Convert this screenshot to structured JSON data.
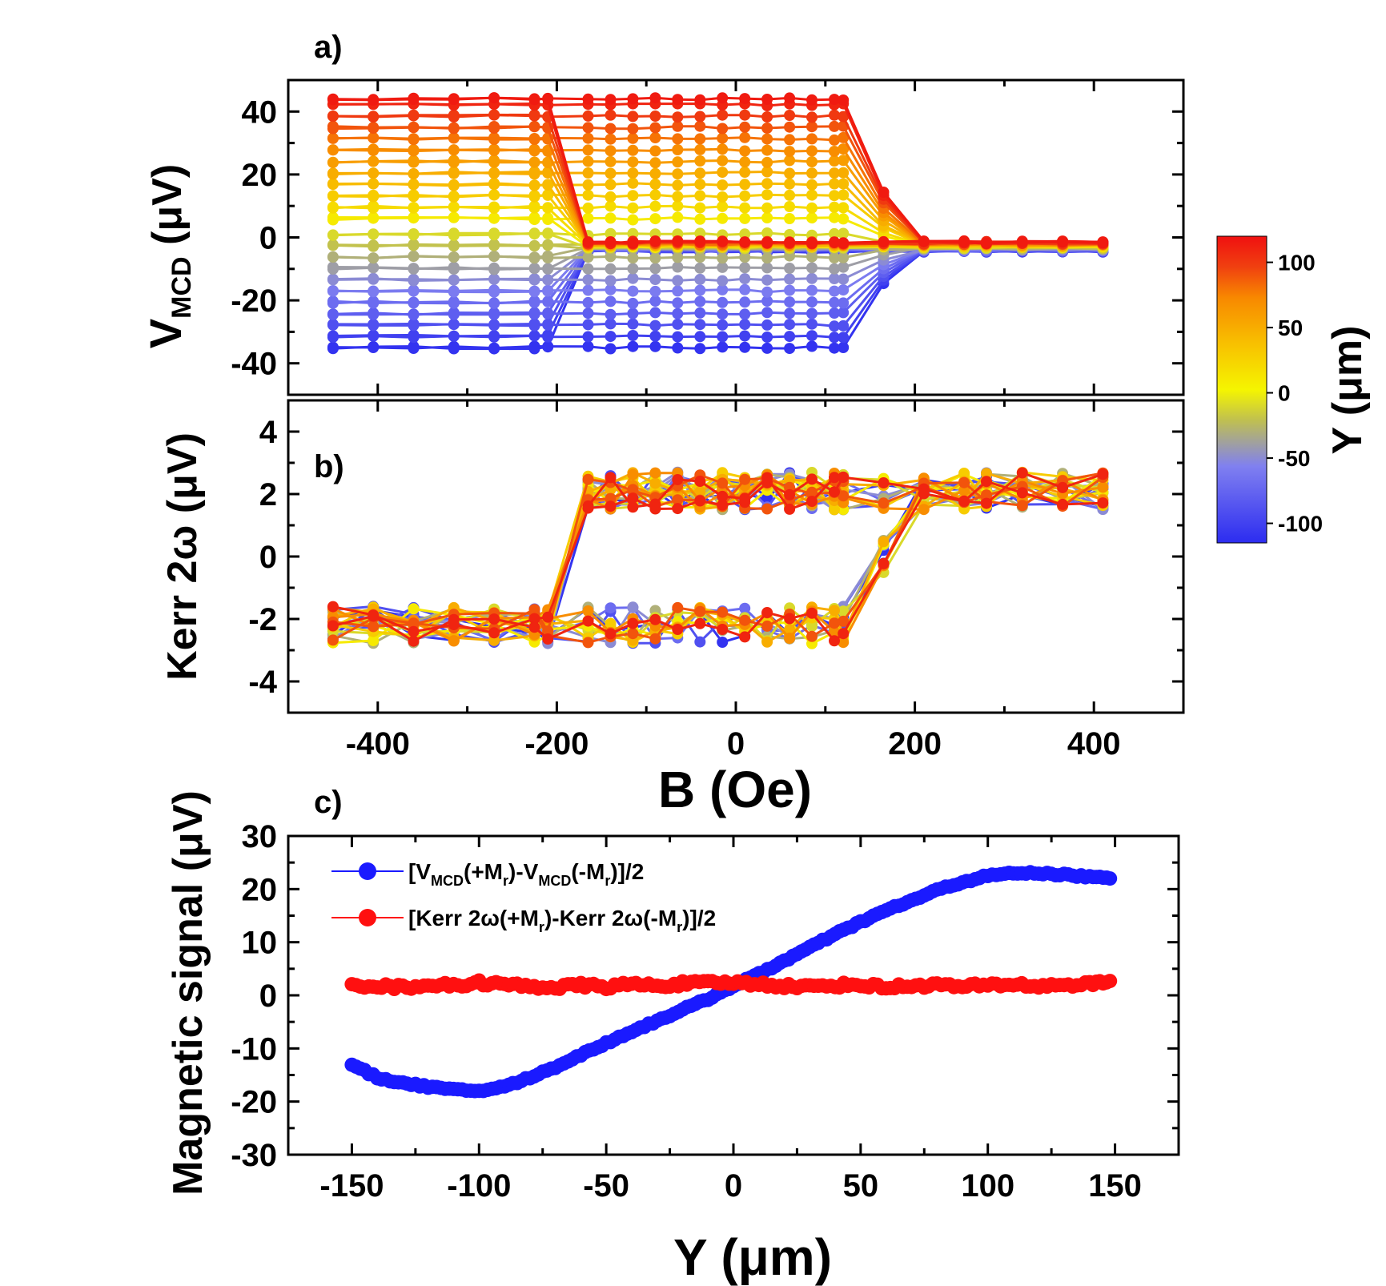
{
  "colors": {
    "colormap": [
      "#2c2cf0",
      "#8080f0",
      "#c0c050",
      "#f5f500",
      "#f8c000",
      "#f88800",
      "#f04010",
      "#f01010"
    ],
    "vmcd_series": "#1a1aff",
    "kerr_series": "#ff1010"
  },
  "chart_data": [
    {
      "id": "a",
      "type": "line",
      "panel_label": "a)",
      "ylabel": "V_MCD (μV)",
      "ylabel_main": "V",
      "ylabel_sub": "MCD",
      "ylabel_rest": " (μV)",
      "xlim": [
        -500,
        500
      ],
      "ylim": [
        -50,
        50
      ],
      "yticks": [
        -40,
        -20,
        0,
        20,
        40
      ],
      "ytick_labels": [
        "-40",
        "-20",
        "0",
        "20",
        "40"
      ],
      "B": [
        -450,
        -405,
        -360,
        -315,
        -270,
        -225,
        -210,
        -165,
        -140,
        -115,
        -90,
        -65,
        -40,
        -15,
        10,
        35,
        60,
        85,
        110,
        120,
        165,
        210,
        255,
        280,
        320,
        365,
        410
      ],
      "Y_levels": [
        -110,
        -100,
        -90,
        -80,
        -70,
        -60,
        -50,
        -40,
        -30,
        -20,
        -10,
        10,
        20,
        30,
        40,
        50,
        60,
        70,
        80,
        90,
        100,
        110,
        115
      ],
      "up_sweep": "V = offset(Y) for B < -210 Oe; collapses to ~ -3 μV for B ≥ -165 Oe",
      "down_sweep": "V = offset(Y) for B < 120 Oe; collapses to ~ -3 μV for B ≥ 210 Oe",
      "saturation_range": [
        -35,
        44
      ]
    },
    {
      "id": "b",
      "type": "line",
      "panel_label": "b)",
      "ylabel": "Kerr 2ω (μV)",
      "ylabel_text": "Kerr 2ω (μV)",
      "xlabel": "B (Oe)",
      "xlim": [
        -500,
        500
      ],
      "ylim": [
        -5,
        5
      ],
      "yticks": [
        -4,
        -2,
        0,
        2,
        4
      ],
      "ytick_labels": [
        "-4",
        "-2",
        "0",
        "2",
        "4"
      ],
      "xticks": [
        -400,
        -200,
        0,
        200,
        400
      ],
      "xtick_labels": [
        "-400",
        "-200",
        "0",
        "200",
        "400"
      ],
      "loop": {
        "low_level": -2.2,
        "high_level": 2.1,
        "switch_up_field_range": [
          -210,
          -165
        ],
        "switch_down_field_range": [
          120,
          210
        ],
        "noise_amplitude": 0.6
      }
    },
    {
      "id": "c",
      "type": "scatter",
      "panel_label": "c)",
      "xlabel": "Y (μm)",
      "ylabel": "Magnetic signal (μV)",
      "xlim": [
        -175,
        175
      ],
      "ylim": [
        -30,
        30
      ],
      "xticks": [
        -150,
        -100,
        -50,
        0,
        50,
        100,
        150
      ],
      "xtick_labels": [
        "-150",
        "-100",
        "-50",
        "0",
        "50",
        "100",
        "150"
      ],
      "yticks": [
        -30,
        -20,
        -10,
        0,
        10,
        20,
        30
      ],
      "ytick_labels": [
        "-30",
        "-20",
        "-10",
        "0",
        "10",
        "20",
        "30"
      ],
      "series": [
        {
          "name": "[V_MCD(+M_r)-V_MCD(-M_r)]/2",
          "color": "#1a1aff",
          "x": [
            -150,
            -140,
            -130,
            -120,
            -110,
            -100,
            -90,
            -80,
            -70,
            -60,
            -50,
            -40,
            -30,
            -20,
            -10,
            0,
            10,
            20,
            30,
            40,
            50,
            60,
            70,
            80,
            90,
            100,
            110,
            120,
            130,
            140,
            148
          ],
          "y": [
            -13,
            -15.5,
            -16.5,
            -17.2,
            -17.8,
            -18,
            -17.2,
            -15.5,
            -13.5,
            -11.2,
            -9,
            -6.8,
            -4.8,
            -2.7,
            -0.7,
            1.8,
            4,
            6.5,
            9,
            11.5,
            13.8,
            16,
            17.8,
            19.8,
            21.3,
            22.5,
            23,
            23,
            22.7,
            22.3,
            22
          ]
        },
        {
          "name": "[Kerr 2ω(+M_r)-Kerr 2ω(-M_r)]/2",
          "color": "#ff1010",
          "x": [
            -150,
            -140,
            -130,
            -120,
            -110,
            -100,
            -90,
            -80,
            -70,
            -60,
            -50,
            -40,
            -30,
            -20,
            -10,
            0,
            10,
            20,
            30,
            40,
            50,
            60,
            70,
            80,
            90,
            100,
            110,
            120,
            130,
            140,
            148
          ],
          "y": [
            2,
            1.8,
            1.5,
            2,
            1.8,
            2.4,
            2,
            1.7,
            1.5,
            1.9,
            1.6,
            2.1,
            1.8,
            2.2,
            2.3,
            2.4,
            2.1,
            1.8,
            1.6,
            1.9,
            2,
            1.5,
            1.8,
            2,
            1.6,
            1.9,
            2.1,
            1.7,
            2,
            2.1,
            2.7
          ]
        }
      ],
      "legend": [
        {
          "pre": "[V",
          "s1": "MCD",
          "m1": "(+M",
          "s2": "r",
          "m2": ")-V",
          "s3": "MCD",
          "m3": "(-M",
          "s4": "r",
          "post": ")]/2"
        },
        {
          "pre": "[Kerr 2ω(+M",
          "s1": "r",
          "m1": ")-Kerr 2ω(-M",
          "s2": "r",
          "post": ")]/2"
        }
      ]
    }
  ],
  "colorbar": {
    "label": "Y (μm)",
    "tick_labels": [
      "100",
      "50",
      "0",
      "-50",
      "-100"
    ],
    "ticks": [
      100,
      50,
      0,
      -50,
      -100
    ],
    "range": [
      -115,
      120
    ]
  }
}
